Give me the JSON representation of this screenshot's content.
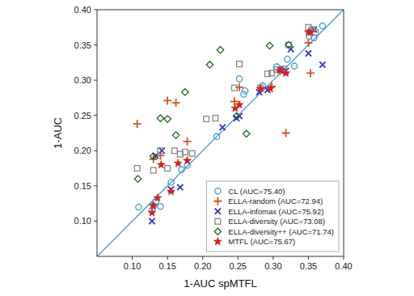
{
  "chart_data": {
    "type": "scatter",
    "xlabel": "1-AUC spMTFL",
    "ylabel": "1-AUC",
    "xlim": [
      0.05,
      0.4
    ],
    "ylim": [
      0.05,
      0.4
    ],
    "xticks": [
      {
        "value": 0.1,
        "label": "0.10"
      },
      0.15,
      {
        "value": 0.2,
        "label": "0.20"
      },
      0.25,
      {
        "value": 0.3,
        "label": "0.30"
      },
      0.35,
      {
        "value": 0.4,
        "label": "0.40"
      }
    ],
    "yticks": [
      {
        "value": 0.1,
        "label": "0.10"
      },
      0.15,
      {
        "value": 0.2,
        "label": "0.20"
      },
      0.25,
      {
        "value": 0.3,
        "label": "0.30"
      },
      0.35,
      {
        "value": 0.4,
        "label": "0.40"
      }
    ],
    "grid": false,
    "legend": "lower right",
    "series": [
      {
        "name": "CL (AUC=75.40)",
        "color": "#4499cc",
        "marker": "circle",
        "x": [
          0.109,
          0.128,
          0.13,
          0.133,
          0.14,
          0.155,
          0.17,
          0.178,
          0.22,
          0.252,
          0.258,
          0.26,
          0.285,
          0.305,
          0.32,
          0.33,
          0.351,
          0.358,
          0.37
        ],
        "values": [
          0.12,
          0.115,
          0.122,
          0.127,
          0.121,
          0.155,
          0.173,
          0.179,
          0.22,
          0.302,
          0.28,
          0.285,
          0.292,
          0.319,
          0.33,
          0.32,
          0.362,
          0.36,
          0.377
        ]
      },
      {
        "name": "ELLA-random (AUC=72.94)",
        "color": "#cc5522",
        "marker": "plus",
        "x": [
          0.107,
          0.13,
          0.14,
          0.15,
          0.162,
          0.178,
          0.245,
          0.252,
          0.282,
          0.298,
          0.31,
          0.318,
          0.35,
          0.353
        ],
        "values": [
          0.238,
          0.188,
          0.193,
          0.271,
          0.268,
          0.213,
          0.27,
          0.29,
          0.286,
          0.291,
          0.313,
          0.225,
          0.353,
          0.31
        ]
      },
      {
        "name": "ELLA-infomax (AUC=75.92)",
        "color": "#3333bb",
        "marker": "x",
        "x": [
          0.128,
          0.133,
          0.142,
          0.155,
          0.168,
          0.228,
          0.248,
          0.252,
          0.28,
          0.292,
          0.31,
          0.318,
          0.325,
          0.35,
          0.358,
          0.37
        ],
        "values": [
          0.1,
          0.193,
          0.2,
          0.145,
          0.148,
          0.233,
          0.246,
          0.249,
          0.283,
          0.286,
          0.315,
          0.313,
          0.344,
          0.338,
          0.372,
          0.322
        ]
      },
      {
        "name": "ELLA-diversity (AUC=73.08)",
        "color": "#888888",
        "marker": "square",
        "x": [
          0.107,
          0.13,
          0.14,
          0.15,
          0.16,
          0.168,
          0.175,
          0.185,
          0.205,
          0.218,
          0.245,
          0.252,
          0.282,
          0.292,
          0.298,
          0.305,
          0.315,
          0.322,
          0.35,
          0.355,
          0.36
        ],
        "values": [
          0.175,
          0.172,
          0.2,
          0.175,
          0.2,
          0.195,
          0.198,
          0.196,
          0.245,
          0.246,
          0.289,
          0.323,
          0.289,
          0.309,
          0.31,
          0.315,
          0.316,
          0.35,
          0.375,
          0.372,
          0.368
        ]
      },
      {
        "name": "ELLA-diversity++ (AUC=71.74)",
        "color": "#226622",
        "marker": "diamond",
        "x": [
          0.108,
          0.13,
          0.14,
          0.15,
          0.162,
          0.175,
          0.21,
          0.225,
          0.248,
          0.262,
          0.295,
          0.322
        ],
        "values": [
          0.16,
          0.192,
          0.246,
          0.245,
          0.222,
          0.283,
          0.322,
          0.343,
          0.249,
          0.224,
          0.349,
          0.35
        ]
      },
      {
        "name": "MTFL (AUC=75.67)",
        "color": "#cc2222",
        "marker": "star",
        "x": [
          0.128,
          0.13,
          0.136,
          0.141,
          0.155,
          0.165,
          0.178,
          0.246,
          0.252,
          0.282,
          0.296,
          0.31,
          0.318,
          0.35,
          0.353
        ],
        "values": [
          0.112,
          0.122,
          0.133,
          0.18,
          0.142,
          0.182,
          0.186,
          0.26,
          0.265,
          0.288,
          0.288,
          0.314,
          0.31,
          0.368,
          0.368
        ]
      }
    ]
  }
}
